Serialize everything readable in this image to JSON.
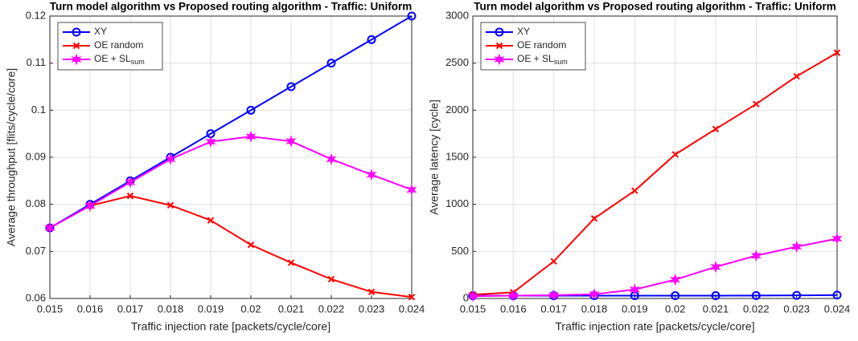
{
  "chart_data": [
    {
      "type": "line",
      "title": "Turn model algorithm vs Proposed routing algorithm - Traffic: Uniform",
      "xlabel": "Traffic injection rate [packets/cycle/core]",
      "ylabel": "Average throughput [flits/cycle/core]",
      "x": [
        0.015,
        0.016,
        0.017,
        0.018,
        0.019,
        0.02,
        0.021,
        0.022,
        0.023,
        0.024
      ],
      "xlim": [
        0.015,
        0.024
      ],
      "xticks": [
        0.015,
        0.016,
        0.017,
        0.018,
        0.019,
        0.02,
        0.021,
        0.022,
        0.023,
        0.024
      ],
      "ylim": [
        0.06,
        0.12
      ],
      "yticks": [
        0.06,
        0.07,
        0.08,
        0.09,
        0.1,
        0.11,
        0.12
      ],
      "grid": true,
      "legend": "upper left",
      "series": [
        {
          "name": "XY",
          "color": "#0000ff",
          "marker": "circle",
          "values": [
            0.075,
            0.08,
            0.085,
            0.09,
            0.095,
            0.1,
            0.105,
            0.11,
            0.115,
            0.12
          ]
        },
        {
          "name": "OE random",
          "color": "#ff0000",
          "marker": "x",
          "values": [
            0.075,
            0.0797,
            0.0818,
            0.0798,
            0.0766,
            0.0714,
            0.0676,
            0.0641,
            0.0614,
            0.0603
          ]
        },
        {
          "name": "OE + SL",
          "name_sub": "sum",
          "color": "#ff00ff",
          "marker": "star",
          "values": [
            0.075,
            0.0797,
            0.0847,
            0.0896,
            0.0933,
            0.0944,
            0.0934,
            0.0896,
            0.0863,
            0.0831
          ]
        }
      ]
    },
    {
      "type": "line",
      "title": "Turn model algorithm vs Proposed routing algorithm - Traffic: Uniform",
      "xlabel": "Traffic injection rate [packets/cycle/core]",
      "ylabel": "Average latency [cycle]",
      "x": [
        0.015,
        0.016,
        0.017,
        0.018,
        0.019,
        0.02,
        0.021,
        0.022,
        0.023,
        0.024
      ],
      "xlim": [
        0.015,
        0.024
      ],
      "xticks": [
        0.015,
        0.016,
        0.017,
        0.018,
        0.019,
        0.02,
        0.021,
        0.022,
        0.023,
        0.024
      ],
      "ylim": [
        0,
        3000
      ],
      "yticks": [
        0,
        500,
        1000,
        1500,
        2000,
        2500,
        3000
      ],
      "grid": true,
      "legend": "upper left",
      "series": [
        {
          "name": "XY",
          "color": "#0000ff",
          "marker": "circle",
          "values": [
            30,
            30,
            30,
            30,
            30,
            30,
            30,
            31,
            33,
            36
          ]
        },
        {
          "name": "OE random",
          "color": "#ff0000",
          "marker": "x",
          "values": [
            40,
            65,
            395,
            850,
            1145,
            1530,
            1800,
            2065,
            2360,
            2610
          ]
        },
        {
          "name": "OE + SL",
          "name_sub": "sum",
          "color": "#ff00ff",
          "marker": "star",
          "values": [
            25,
            30,
            35,
            45,
            95,
            200,
            335,
            455,
            550,
            635
          ]
        }
      ]
    }
  ]
}
